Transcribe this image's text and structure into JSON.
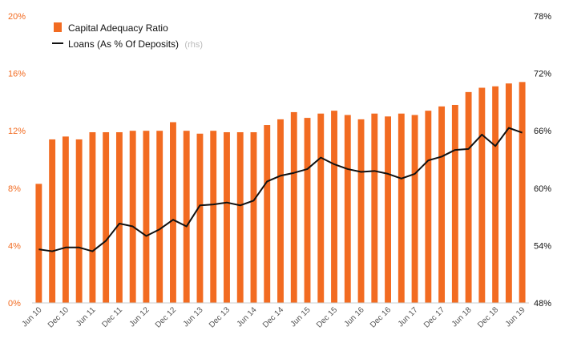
{
  "chart_data": {
    "type": "bar+line",
    "x": [
      "Jun 10",
      "Sep 10",
      "Dec 10",
      "Mar 11",
      "Jun 11",
      "Sep 11",
      "Dec 11",
      "Mar 12",
      "Jun 12",
      "Sep 12",
      "Dec 12",
      "Mar 13",
      "Jun 13",
      "Sep 13",
      "Dec 13",
      "Mar 14",
      "Jun 14",
      "Sep 14",
      "Dec 14",
      "Mar 15",
      "Jun 15",
      "Sep 15",
      "Dec 15",
      "Mar 16",
      "Jun 16",
      "Sep 16",
      "Dec 16",
      "Mar 17",
      "Jun 17",
      "Sep 17",
      "Dec 17",
      "Mar 18",
      "Jun 18",
      "Sep 18",
      "Dec 18",
      "Mar 19",
      "Jun 19"
    ],
    "x_tick_labels": [
      "Jun 10",
      "Dec 10",
      "Jun 11",
      "Dec 11",
      "Jun 12",
      "Dec 12",
      "Jun 13",
      "Dec 13",
      "Jun 14",
      "Dec 14",
      "Jun 15",
      "Dec 15",
      "Jun 16",
      "Dec 16",
      "Jun 17",
      "Dec 17",
      "Jun 18",
      "Dec 18",
      "Jun 19"
    ],
    "series": [
      {
        "name": "Capital Adequacy Ratio",
        "type": "bar",
        "axis": "left",
        "color": "#f26b21",
        "unit": "%",
        "values": [
          8.3,
          11.4,
          11.6,
          11.4,
          11.9,
          11.9,
          11.9,
          12.0,
          12.0,
          12.0,
          12.6,
          12.0,
          11.8,
          12.0,
          11.9,
          11.9,
          11.9,
          12.4,
          12.8,
          13.3,
          12.9,
          13.2,
          13.4,
          13.1,
          12.8,
          13.2,
          13.0,
          13.2,
          13.1,
          13.4,
          13.7,
          13.8,
          14.7,
          15.0,
          15.1,
          15.3,
          15.4
        ]
      },
      {
        "name": "Loans (As % Of Deposits)",
        "type": "line",
        "axis": "right",
        "color": "#111111",
        "unit": "%",
        "values": [
          53.6,
          53.4,
          53.8,
          53.8,
          53.4,
          54.5,
          56.3,
          56.0,
          55.0,
          55.7,
          56.7,
          56.0,
          58.2,
          58.3,
          58.5,
          58.2,
          58.7,
          60.7,
          61.3,
          61.6,
          62.0,
          63.2,
          62.5,
          62.0,
          61.7,
          61.8,
          61.5,
          61.0,
          61.5,
          62.9,
          63.3,
          64.0,
          64.1,
          65.6,
          64.4,
          66.3,
          65.8
        ]
      }
    ],
    "y_left": {
      "ticks": [
        "0%",
        "4%",
        "8%",
        "12%",
        "16%",
        "20%"
      ],
      "range": [
        0,
        20
      ],
      "color": "#f26b21"
    },
    "y_right": {
      "ticks": [
        "48%",
        "54%",
        "60%",
        "66%",
        "72%",
        "78%"
      ],
      "range": [
        48,
        78
      ],
      "color": "#111111"
    },
    "legend": {
      "placement": "top-left",
      "items": [
        "Capital Adequacy Ratio",
        "Loans (As % Of Deposits)"
      ],
      "rhs_note": "(rhs)"
    },
    "grid": false
  }
}
